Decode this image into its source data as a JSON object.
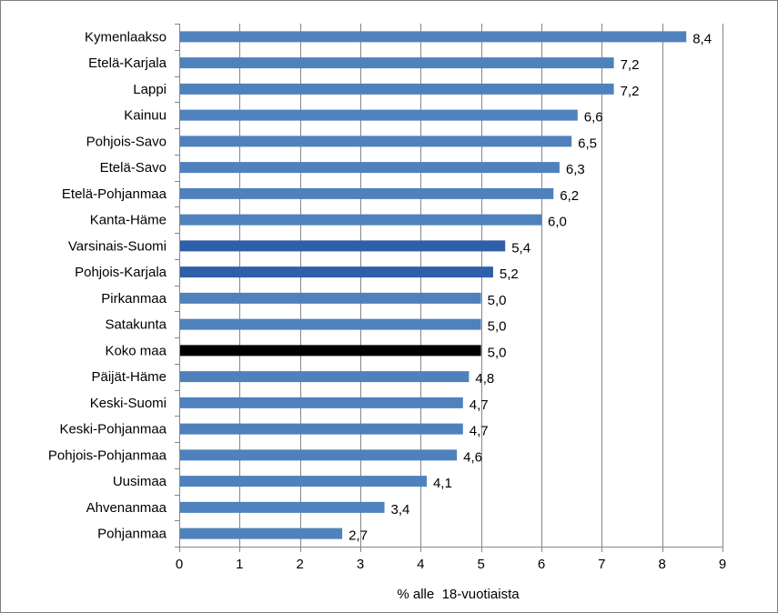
{
  "chart_data": {
    "type": "bar",
    "orientation": "horizontal",
    "categories": [
      "Kymenlaakso",
      "Etelä-Karjala",
      "Lappi",
      "Kainuu",
      "Pohjois-Savo",
      "Etelä-Savo",
      "Etelä-Pohjanmaa",
      "Kanta-Häme",
      "Varsinais-Suomi",
      "Pohjois-Karjala",
      "Pirkanmaa",
      "Satakunta",
      "Koko maa",
      "Päijät-Häme",
      "Keski-Suomi",
      "Keski-Pohjanmaa",
      "Pohjois-Pohjanmaa",
      "Uusimaa",
      "Ahvenanmaa",
      "Pohjanmaa"
    ],
    "values": [
      8.4,
      7.2,
      7.2,
      6.6,
      6.5,
      6.3,
      6.2,
      6.0,
      5.4,
      5.2,
      5.0,
      5.0,
      5.0,
      4.8,
      4.7,
      4.7,
      4.6,
      4.1,
      3.4,
      2.7
    ],
    "value_labels": [
      "8,4",
      "7,2",
      "7,2",
      "6,6",
      "6,5",
      "6,3",
      "6,2",
      "6,0",
      "5,4",
      "5,2",
      "5,0",
      "5,0",
      "5,0",
      "4,8",
      "4,7",
      "4,7",
      "4,6",
      "4,1",
      "3,4",
      "2,7"
    ],
    "bar_colors": [
      "#4f81bd",
      "#4f81bd",
      "#4f81bd",
      "#4f81bd",
      "#4f81bd",
      "#4f81bd",
      "#4f81bd",
      "#4f81bd",
      "#2e5fa8",
      "#2e5fa8",
      "#4f81bd",
      "#4f81bd",
      "#000000",
      "#4f81bd",
      "#4f81bd",
      "#4f81bd",
      "#4f81bd",
      "#4f81bd",
      "#4f81bd",
      "#4f81bd"
    ],
    "xlabel": "% alle  18-vuotiaista",
    "ylabel": "",
    "title": "",
    "xlim": [
      0,
      9
    ],
    "xticks": [
      0,
      1,
      2,
      3,
      4,
      5,
      6,
      7,
      8,
      9
    ],
    "grid": "vertical",
    "gridline_color": "#868686",
    "legend": "none"
  }
}
